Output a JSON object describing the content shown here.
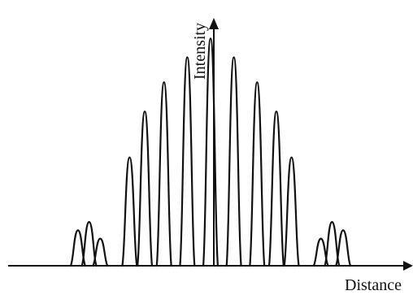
{
  "chart_data": {
    "type": "line",
    "title": "",
    "xlabel": "Distance",
    "ylabel": "Intensity",
    "grid": false,
    "legend": "none",
    "x_ticks": [],
    "y_ticks": [],
    "xlim": [
      -10,
      10
    ],
    "ylim": [
      0,
      1.15
    ],
    "series": [
      {
        "description_free": true,
        "peaks": [
          {
            "x": -6.55,
            "y": 0.17
          },
          {
            "x": -6.0,
            "y": 0.21
          },
          {
            "x": -5.45,
            "y": 0.13
          },
          {
            "x": -4.0,
            "y": 0.52
          },
          {
            "x": -3.25,
            "y": 0.74
          },
          {
            "x": -2.3,
            "y": 0.88
          },
          {
            "x": -1.15,
            "y": 1.0
          },
          {
            "x": 0.0,
            "y": 1.09
          },
          {
            "x": 1.15,
            "y": 1.0
          },
          {
            "x": 2.3,
            "y": 0.88
          },
          {
            "x": 3.25,
            "y": 0.74
          },
          {
            "x": 4.0,
            "y": 0.52
          },
          {
            "x": 5.45,
            "y": 0.13
          },
          {
            "x": 6.0,
            "y": 0.21
          },
          {
            "x": 6.55,
            "y": 0.17
          }
        ]
      }
    ],
    "colors": {
      "line": "#111111"
    }
  }
}
